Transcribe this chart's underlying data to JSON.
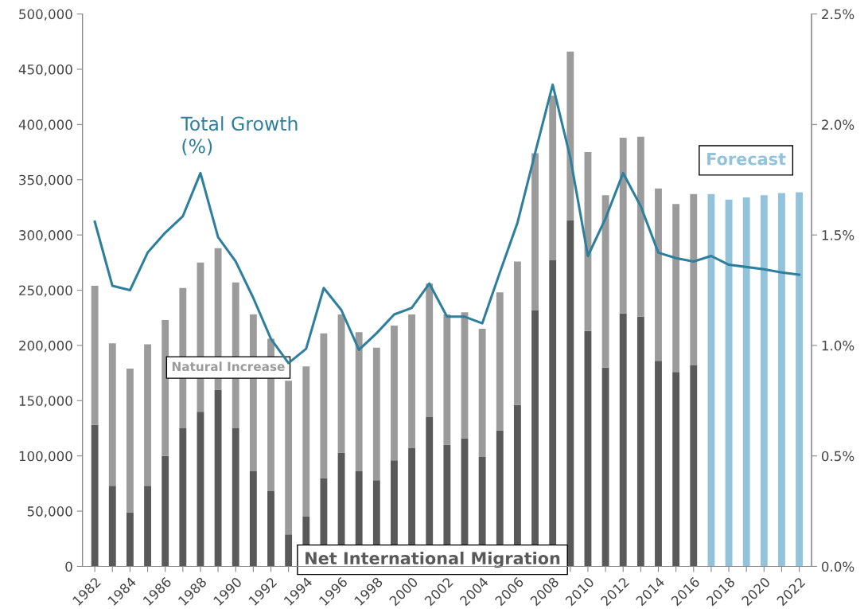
{
  "chart_data": {
    "type": "bar",
    "stacked": true,
    "categories": [
      "1982",
      null,
      "1984",
      null,
      "1986",
      null,
      "1988",
      null,
      "1990",
      null,
      "1992",
      null,
      "1994",
      null,
      "1996",
      null,
      "1998",
      null,
      "2000",
      null,
      "2002",
      null,
      "2004",
      null,
      "2006",
      null,
      "2008",
      null,
      "2010",
      null,
      "2012",
      null,
      "2014",
      null,
      "2016",
      null,
      "2018",
      null,
      "2020",
      null,
      "2022"
    ],
    "series": [
      {
        "name": "Net International Migration",
        "color": "#595959",
        "values": [
          128000,
          73000,
          49000,
          73000,
          100000,
          125000,
          140000,
          160000,
          125000,
          86000,
          68000,
          29000,
          45000,
          80000,
          103000,
          86000,
          78000,
          96000,
          107000,
          135000,
          110000,
          116000,
          99000,
          123000,
          146000,
          232000,
          277000,
          313000,
          213000,
          180000,
          229000,
          226000,
          186000,
          176000,
          182000,
          null,
          null,
          null,
          null,
          null,
          null
        ]
      },
      {
        "name": "Natural Increase",
        "color": "#9b9b9b",
        "values": [
          126000,
          129000,
          130000,
          128000,
          123000,
          127000,
          135000,
          128000,
          132000,
          142000,
          138000,
          139000,
          136000,
          131000,
          125000,
          126000,
          120000,
          122000,
          121000,
          121000,
          118000,
          114000,
          116000,
          125000,
          130000,
          142000,
          149000,
          153000,
          162000,
          156000,
          159000,
          163000,
          156000,
          152000,
          155000,
          null,
          null,
          null,
          null,
          null,
          null
        ]
      },
      {
        "name": "Forecast",
        "color": "#92c3da",
        "values": [
          null,
          null,
          null,
          null,
          null,
          null,
          null,
          null,
          null,
          null,
          null,
          null,
          null,
          null,
          null,
          null,
          null,
          null,
          null,
          null,
          null,
          null,
          null,
          null,
          null,
          null,
          null,
          null,
          null,
          null,
          null,
          null,
          null,
          null,
          null,
          337000,
          332000,
          334000,
          336000,
          338000,
          338600
        ]
      },
      {
        "name": "Total Growth\n(%)",
        "type": "line",
        "axis": "y2",
        "color": "#2e7f9e",
        "values": [
          1.56,
          1.27,
          1.25,
          1.42,
          1.51,
          1.585,
          1.78,
          1.49,
          1.38,
          1.215,
          1.03,
          0.92,
          0.985,
          1.26,
          1.16,
          0.98,
          1.055,
          1.14,
          1.17,
          1.28,
          1.13,
          1.13,
          1.1,
          1.33,
          1.555,
          1.87,
          2.18,
          1.85,
          1.405,
          1.575,
          1.78,
          1.63,
          1.42,
          1.395,
          1.38,
          1.405,
          1.365,
          1.355,
          1.345,
          1.33,
          1.32
        ]
      }
    ],
    "ylim": [
      0,
      500000
    ],
    "yticks": [
      {
        "value": 0,
        "label": "0"
      },
      {
        "value": 50000,
        "label": "50,000"
      },
      {
        "value": 100000,
        "label": "100,000"
      },
      {
        "value": 150000,
        "label": "150,000"
      },
      {
        "value": 200000,
        "label": "200,000"
      },
      {
        "value": 250000,
        "label": "250,000"
      },
      {
        "value": 300000,
        "label": "300,000"
      },
      {
        "value": 350000,
        "label": "350,000"
      },
      {
        "value": 400000,
        "label": "400,000"
      },
      {
        "value": 450000,
        "label": "450,000"
      },
      {
        "value": 500000,
        "label": "500,000"
      }
    ],
    "y2lim": [
      0,
      2.5
    ],
    "y2ticks": [
      {
        "value": 0,
        "label": "0.0%"
      },
      {
        "value": 0.5,
        "label": "0.5%"
      },
      {
        "value": 1.0,
        "label": "1.0%"
      },
      {
        "value": 1.5,
        "label": "1.5%"
      },
      {
        "value": 2.0,
        "label": "2.0%"
      },
      {
        "value": 2.5,
        "label": "2.5%"
      }
    ],
    "grid": false,
    "legend": false,
    "marker": "none",
    "line_style": "solid"
  }
}
